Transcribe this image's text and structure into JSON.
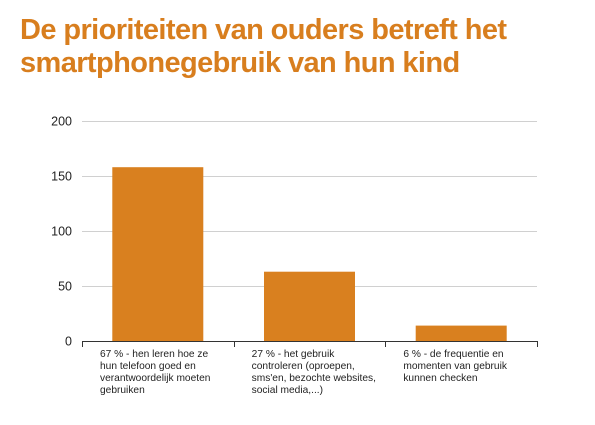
{
  "title_lines": [
    "De prioriteiten van ouders betreft het",
    "smartphonegebruik van hun kind"
  ],
  "chart_data": {
    "type": "bar",
    "title": "De prioriteiten van ouders betreft het smartphonegebruik van hun kind",
    "categories": [
      "67 % - hen leren hoe ze hun telefoon goed en verantwoordelijk moeten gebruiken",
      "27 % - het gebruik controleren (oproepen, sms'en, bezochte websites, social media,...)",
      "6 % - de frequentie en momenten van gebruik kunnen checken"
    ],
    "values": [
      158,
      63,
      14
    ],
    "ylim": [
      0,
      200
    ],
    "yticks": [
      0,
      50,
      100,
      150,
      200
    ],
    "xlabel": "",
    "ylabel": "",
    "grid": true,
    "legend": "none"
  },
  "colors": {
    "title": "#D87E1E",
    "bar": "#D9801F",
    "grid": "#D0D0D0",
    "axis": "#333333",
    "tick_text": "#222222"
  }
}
